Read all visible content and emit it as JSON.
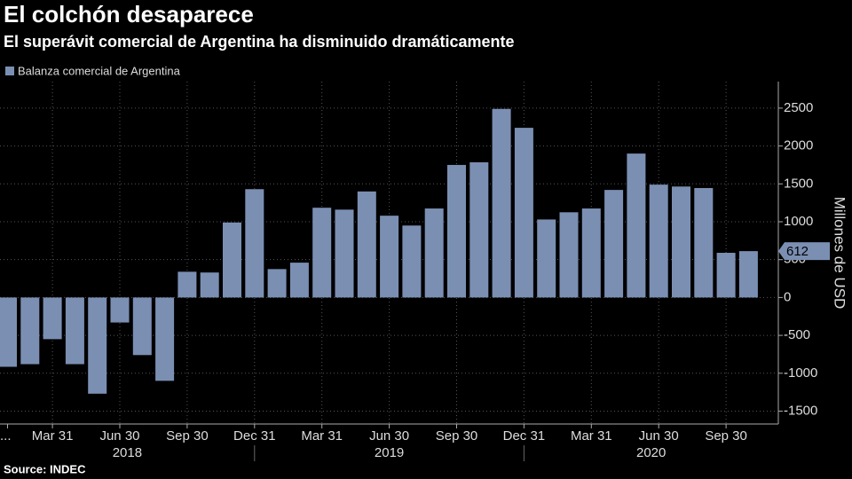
{
  "chart_data": {
    "type": "bar",
    "title": "El colchón desaparece",
    "subtitle": "El superávit comercial de Argentina ha disminuido dramáticamente",
    "series": [
      {
        "name": "Balanza comercial de Argentina",
        "color": "#7b8fb3",
        "values": [
          -915,
          -880,
          -550,
          -880,
          -1270,
          -330,
          -760,
          -1100,
          340,
          330,
          990,
          1430,
          375,
          460,
          1185,
          1160,
          1400,
          1080,
          950,
          1175,
          1750,
          1785,
          2490,
          2240,
          1030,
          1125,
          1175,
          1420,
          1900,
          1490,
          1465,
          1445,
          590,
          612
        ]
      }
    ],
    "categories": [
      "...",
      null,
      "Mar 31",
      null,
      null,
      "Jun 30",
      null,
      null,
      "Sep 30",
      null,
      null,
      "Dec 31",
      null,
      null,
      "Mar 31",
      null,
      null,
      "Jun 30",
      null,
      null,
      "Sep 30",
      null,
      null,
      "Dec 31",
      null,
      null,
      "Mar 31",
      null,
      null,
      "Jun 30",
      null,
      null,
      "Sep 30",
      null
    ],
    "years": [
      "2018",
      "2019",
      "2020"
    ],
    "y_label": "Millones de USD",
    "ylim": [
      -1670,
      2850
    ],
    "yticks": [
      -1500,
      -1000,
      -500,
      0,
      500,
      1000,
      1500,
      2000,
      2500
    ],
    "grid": true,
    "source": "Source: INDEC"
  }
}
